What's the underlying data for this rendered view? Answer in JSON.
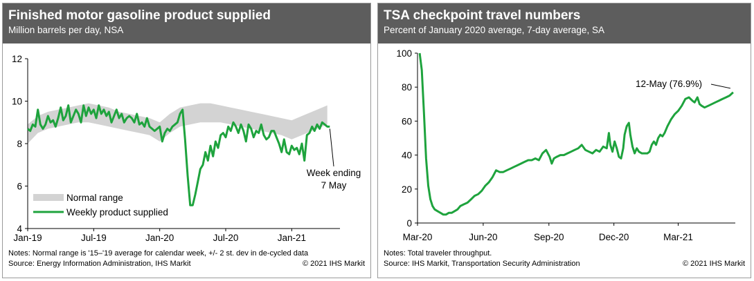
{
  "colors": {
    "header_bg": "#5d5d5d",
    "band": "#d3d3d3",
    "line": "#1ea33d",
    "axis": "#000000"
  },
  "charts": [
    {
      "title": "Finished motor gasoline product supplied",
      "subtitle": "Million barrels per day, NSA",
      "notes": "Notes: Normal range is '15–'19 average for calendar week, +/- 2 st. dev in de-cycled data",
      "source": "Source: Energy Information Administration, IHS Markit",
      "copyright": "© 2021 IHS Markit",
      "legend": {
        "band_label": "Normal range",
        "line_label": "Weekly product supplied"
      },
      "annotation": {
        "line1": "Week ending",
        "line2": "7 May"
      }
    },
    {
      "title": "TSA checkpoint travel numbers",
      "subtitle": "Percent of January 2020 average, 7-day average, SA",
      "notes": "Notes: Total traveler throughput.",
      "source": "Source: IHS Markit, Transportation Security Administration",
      "copyright": "© 2021 IHS Markit",
      "annotation": {
        "label": "12-May (76.9%)"
      }
    }
  ],
  "chart_data": [
    {
      "type": "line",
      "title": "Finished motor gasoline product supplied",
      "ylabel": "Million barrels per day, NSA",
      "ylim": [
        4,
        12
      ],
      "yticks": [
        4,
        6,
        8,
        10,
        12
      ],
      "xlim": [
        0,
        123
      ],
      "xticks": [
        {
          "label": "Jan-19",
          "x": 0
        },
        {
          "label": "Jul-19",
          "x": 26
        },
        {
          "label": "Jan-20",
          "x": 52
        },
        {
          "label": "Jul-20",
          "x": 78
        },
        {
          "label": "Jan-21",
          "x": 104
        }
      ],
      "band": {
        "name": "Normal range",
        "x": [
          0,
          4,
          8,
          12,
          16,
          20,
          24,
          28,
          32,
          36,
          40,
          44,
          48,
          52,
          56,
          60,
          64,
          68,
          72,
          76,
          80,
          84,
          88,
          92,
          96,
          100,
          104,
          108,
          112,
          116,
          118
        ],
        "low": [
          8.0,
          8.5,
          8.7,
          8.8,
          8.9,
          9.0,
          9.0,
          8.9,
          8.8,
          8.7,
          8.6,
          8.5,
          8.4,
          8.1,
          8.5,
          8.8,
          8.9,
          9.0,
          9.0,
          9.0,
          8.9,
          8.8,
          8.7,
          8.6,
          8.5,
          8.4,
          8.2,
          8.4,
          8.6,
          8.8,
          8.9
        ],
        "high": [
          8.9,
          9.3,
          9.5,
          9.6,
          9.7,
          9.8,
          9.9,
          9.8,
          9.7,
          9.5,
          9.4,
          9.3,
          9.2,
          9.0,
          9.4,
          9.7,
          9.8,
          9.9,
          9.9,
          9.8,
          9.7,
          9.6,
          9.5,
          9.4,
          9.3,
          9.2,
          9.1,
          9.3,
          9.5,
          9.7,
          9.8
        ]
      },
      "series": [
        {
          "name": "Weekly product supplied",
          "x": [
            0,
            1,
            2,
            3,
            4,
            5,
            6,
            7,
            8,
            9,
            10,
            11,
            12,
            13,
            14,
            15,
            16,
            17,
            18,
            19,
            20,
            21,
            22,
            23,
            24,
            25,
            26,
            27,
            28,
            29,
            30,
            31,
            32,
            33,
            34,
            35,
            36,
            37,
            38,
            39,
            40,
            41,
            42,
            43,
            44,
            45,
            46,
            47,
            48,
            49,
            50,
            51,
            52,
            53,
            54,
            55,
            56,
            57,
            58,
            59,
            60,
            61,
            62,
            63,
            64,
            65,
            66,
            67,
            68,
            69,
            70,
            71,
            72,
            73,
            74,
            75,
            76,
            77,
            78,
            79,
            80,
            81,
            82,
            83,
            84,
            85,
            86,
            87,
            88,
            89,
            90,
            91,
            92,
            93,
            94,
            95,
            96,
            97,
            98,
            99,
            100,
            101,
            102,
            103,
            104,
            105,
            106,
            107,
            108,
            109,
            110,
            111,
            112,
            113,
            114,
            115,
            116,
            117,
            118,
            119
          ],
          "values": [
            8.7,
            8.6,
            8.9,
            8.8,
            9.6,
            8.9,
            8.7,
            8.9,
            9.3,
            9.0,
            9.1,
            8.8,
            9.2,
            9.7,
            9.1,
            9.3,
            9.8,
            9.0,
            9.3,
            9.6,
            9.4,
            9.0,
            9.8,
            9.3,
            9.7,
            9.4,
            9.6,
            9.2,
            9.8,
            9.4,
            9.6,
            9.3,
            9.5,
            9.0,
            9.3,
            9.6,
            9.2,
            9.4,
            9.0,
            9.2,
            9.3,
            9.2,
            9.0,
            9.4,
            8.9,
            9.0,
            8.8,
            9.2,
            8.8,
            8.7,
            8.6,
            8.7,
            8.8,
            8.1,
            8.5,
            8.7,
            8.6,
            8.8,
            8.9,
            9.0,
            9.4,
            9.6,
            8.2,
            6.5,
            5.1,
            5.1,
            5.6,
            6.2,
            6.8,
            7.0,
            7.6,
            7.2,
            7.9,
            7.4,
            8.1,
            7.8,
            8.4,
            8.5,
            8.3,
            8.8,
            8.6,
            9.0,
            8.8,
            8.5,
            8.9,
            8.6,
            8.1,
            8.9,
            8.7,
            8.3,
            8.6,
            8.5,
            8.9,
            8.4,
            8.2,
            8.3,
            8.6,
            8.6,
            8.3,
            8.0,
            7.6,
            8.2,
            7.6,
            7.5,
            7.9,
            7.7,
            7.8,
            7.5,
            8.0,
            7.2,
            8.4,
            8.5,
            8.8,
            8.6,
            8.9,
            8.7,
            9.0,
            8.9,
            8.8,
            8.8
          ]
        }
      ]
    },
    {
      "type": "line",
      "title": "TSA checkpoint travel numbers",
      "ylabel": "Percent of January 2020 average, 7-day average, SA",
      "ylim": [
        0,
        100
      ],
      "yticks": [
        0,
        20,
        40,
        60,
        80,
        100
      ],
      "xlim": [
        0,
        445
      ],
      "xticks": [
        {
          "label": "Mar-20",
          "x": 0
        },
        {
          "label": "Jun-20",
          "x": 92
        },
        {
          "label": "Sep-20",
          "x": 184
        },
        {
          "label": "Dec-20",
          "x": 275
        },
        {
          "label": "Mar-21",
          "x": 365
        }
      ],
      "series": [
        {
          "name": "TSA checkpoint travel",
          "x": [
            3,
            6,
            9,
            12,
            15,
            18,
            21,
            24,
            28,
            32,
            36,
            40,
            44,
            48,
            52,
            56,
            60,
            65,
            70,
            75,
            80,
            85,
            90,
            95,
            100,
            105,
            110,
            115,
            120,
            125,
            130,
            135,
            140,
            145,
            150,
            155,
            160,
            165,
            170,
            175,
            180,
            185,
            188,
            191,
            195,
            200,
            205,
            210,
            215,
            220,
            225,
            230,
            235,
            240,
            245,
            250,
            255,
            260,
            265,
            268,
            270,
            273,
            276,
            279,
            282,
            285,
            288,
            290,
            293,
            296,
            298,
            301,
            304,
            307,
            310,
            314,
            318,
            322,
            325,
            328,
            331,
            334,
            337,
            340,
            343,
            346,
            350,
            355,
            360,
            365,
            370,
            375,
            380,
            385,
            388,
            392,
            395,
            398,
            402,
            407,
            412,
            417,
            422,
            427,
            432,
            437,
            442
          ],
          "values": [
            100,
            90,
            65,
            38,
            22,
            14,
            10,
            8,
            7,
            6,
            5,
            5,
            6,
            6,
            7,
            8,
            10,
            11,
            12,
            14,
            16,
            17,
            19,
            22,
            24,
            27,
            31,
            30,
            30,
            31,
            32,
            33,
            34,
            35,
            36,
            37,
            37,
            38,
            37,
            41,
            43,
            39,
            35,
            38,
            39,
            40,
            40,
            41,
            42,
            43,
            44,
            46,
            43,
            42,
            41,
            43,
            42,
            45,
            44,
            53,
            46,
            42,
            48,
            44,
            39,
            38,
            44,
            52,
            57,
            59,
            52,
            45,
            41,
            44,
            42,
            41,
            41,
            41,
            42,
            46,
            48,
            46,
            50,
            52,
            51,
            53,
            57,
            61,
            64,
            66,
            69,
            73,
            74,
            72,
            71,
            74,
            70,
            69,
            68,
            69,
            70,
            71,
            72,
            73,
            74,
            75,
            76.9
          ]
        }
      ]
    }
  ]
}
